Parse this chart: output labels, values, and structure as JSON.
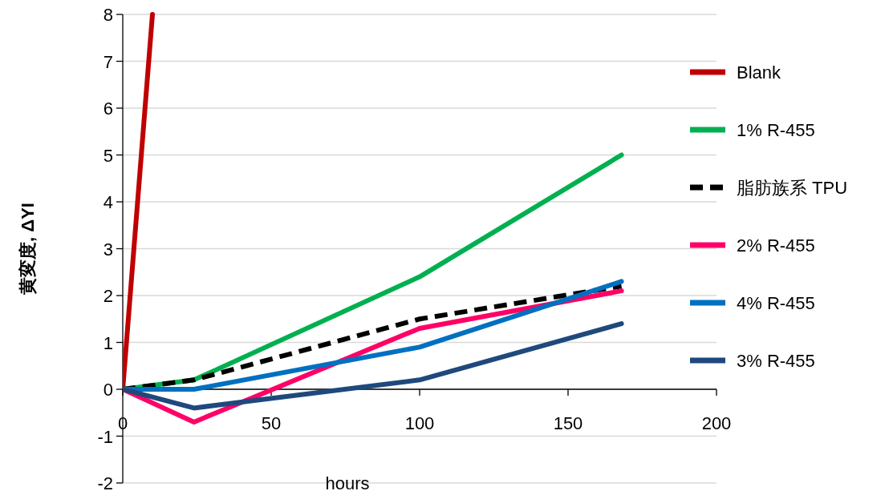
{
  "chart_data": {
    "type": "line",
    "xlabel": "hours",
    "ylabel": "黄変度, ΔYI",
    "x": [
      0,
      24,
      100,
      168
    ],
    "series": [
      {
        "name": "Blank",
        "color": "#c00000",
        "x": [
          0,
          10
        ],
        "values": [
          0,
          8
        ]
      },
      {
        "name": "1% R-455",
        "color": "#00b050",
        "values": [
          0,
          0.2,
          2.4,
          5.0
        ]
      },
      {
        "name": "脂肪族系 TPU",
        "color": "#000000",
        "line_style": "dashed",
        "values": [
          0,
          0.2,
          1.5,
          2.2
        ]
      },
      {
        "name": "2% R-455",
        "color": "#ff0066",
        "values": [
          0,
          -0.7,
          1.3,
          2.1
        ]
      },
      {
        "name": "4% R-455",
        "color": "#0070c0",
        "values": [
          0,
          0,
          0.9,
          2.3
        ]
      },
      {
        "name": "3% R-455",
        "color": "#1f497d",
        "values": [
          0,
          -0.4,
          0.2,
          1.4
        ]
      }
    ],
    "xlim": [
      0,
      200
    ],
    "xticks": [
      0,
      50,
      100,
      150,
      200
    ],
    "ylim": [
      -2,
      8
    ],
    "yticks": [
      -2,
      -1,
      0,
      1,
      2,
      3,
      4,
      5,
      6,
      7,
      8
    ],
    "grid": "y",
    "legend": "right",
    "line_style": "solid",
    "marker": "none"
  }
}
